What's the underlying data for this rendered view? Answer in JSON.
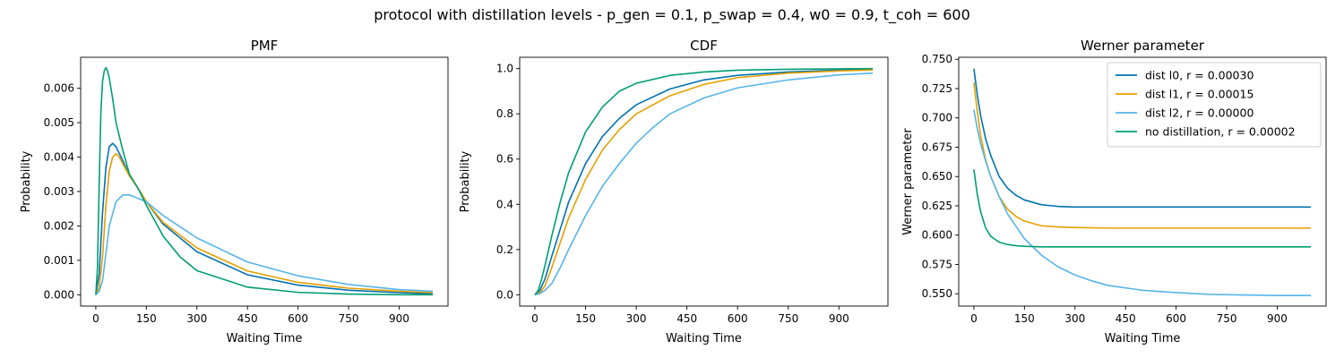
{
  "figure_title": "protocol with distillation levels - p_gen = 0.1, p_swap = 0.4, w0 = 0.9, t_coh = 600",
  "series_colors": {
    "dist_l0": "#0072b2",
    "dist_l1": "#e69f00",
    "dist_l2": "#56b4e9",
    "no_distillation": "#009e73"
  },
  "chart_data": [
    {
      "type": "line",
      "title": "PMF",
      "xlabel": "Waiting Time",
      "ylabel": "Probability",
      "xlim": [
        -45,
        1045
      ],
      "ylim": [
        -0.00033,
        0.0069
      ],
      "xticks": [
        0,
        150,
        300,
        450,
        600,
        750,
        900
      ],
      "xtick_labels": [
        "0",
        "150",
        "300",
        "450",
        "600",
        "750",
        "900"
      ],
      "yticks": [
        0,
        0.001,
        0.002,
        0.003,
        0.004,
        0.005,
        0.006
      ],
      "ytick_labels": [
        "0.000",
        "0.001",
        "0.002",
        "0.003",
        "0.004",
        "0.005",
        "0.006"
      ],
      "series": [
        {
          "key": "dist_l0",
          "color": "#0072b2",
          "x": [
            0,
            10,
            20,
            30,
            40,
            50,
            60,
            80,
            100,
            125,
            150,
            200,
            300,
            450,
            600,
            750,
            900,
            1000
          ],
          "y": [
            0,
            0.0006,
            0.0024,
            0.0037,
            0.0043,
            0.0044,
            0.0043,
            0.0039,
            0.00345,
            0.0031,
            0.0027,
            0.00205,
            0.00125,
            0.00058,
            0.00028,
            0.00013,
            6e-05,
            3e-05
          ]
        },
        {
          "key": "dist_l1",
          "color": "#e69f00",
          "x": [
            0,
            10,
            20,
            30,
            40,
            50,
            60,
            70,
            80,
            100,
            125,
            150,
            200,
            300,
            450,
            600,
            750,
            900,
            1000
          ],
          "y": [
            0,
            0.0002,
            0.0011,
            0.0026,
            0.0036,
            0.004,
            0.0041,
            0.004,
            0.0038,
            0.00345,
            0.0031,
            0.0027,
            0.0021,
            0.00136,
            0.00069,
            0.00036,
            0.00019,
            0.0001,
            6e-05
          ]
        },
        {
          "key": "dist_l2",
          "color": "#56b4e9",
          "x": [
            0,
            10,
            20,
            30,
            40,
            60,
            80,
            100,
            125,
            150,
            200,
            300,
            450,
            600,
            750,
            900,
            1000
          ],
          "y": [
            0,
            0.0001,
            0.0004,
            0.0012,
            0.002,
            0.0027,
            0.0029,
            0.0029,
            0.0028,
            0.0027,
            0.0023,
            0.00165,
            0.00095,
            0.00055,
            0.0003,
            0.00015,
            0.0001
          ]
        },
        {
          "key": "no_distillation",
          "color": "#009e73",
          "x": [
            0,
            5,
            10,
            15,
            20,
            25,
            30,
            35,
            40,
            50,
            60,
            80,
            100,
            125,
            150,
            200,
            250,
            300,
            450,
            600,
            750,
            900,
            1000
          ],
          "y": [
            0,
            0.0008,
            0.0032,
            0.0053,
            0.0062,
            0.0065,
            0.0066,
            0.0065,
            0.0063,
            0.0057,
            0.005,
            0.0042,
            0.0035,
            0.0031,
            0.0026,
            0.0017,
            0.0011,
            0.0007,
            0.00022,
            7e-05,
            2e-05,
            0,
            0
          ]
        }
      ]
    },
    {
      "type": "line",
      "title": "CDF",
      "xlabel": "Waiting Time",
      "ylabel": "Probability",
      "xlim": [
        -45,
        1045
      ],
      "ylim": [
        -0.05,
        1.05
      ],
      "xticks": [
        0,
        150,
        300,
        450,
        600,
        750,
        900
      ],
      "xtick_labels": [
        "0",
        "150",
        "300",
        "450",
        "600",
        "750",
        "900"
      ],
      "yticks": [
        0,
        0.2,
        0.4,
        0.6,
        0.8,
        1.0
      ],
      "ytick_labels": [
        "0.0",
        "0.2",
        "0.4",
        "0.6",
        "0.8",
        "1.0"
      ],
      "series": [
        {
          "key": "dist_l0",
          "color": "#0072b2",
          "x": [
            0,
            15,
            30,
            50,
            75,
            100,
            150,
            200,
            250,
            300,
            400,
            500,
            600,
            750,
            900,
            1000
          ],
          "y": [
            0,
            0.02,
            0.07,
            0.17,
            0.29,
            0.41,
            0.58,
            0.7,
            0.78,
            0.84,
            0.91,
            0.95,
            0.97,
            0.985,
            0.993,
            0.996
          ]
        },
        {
          "key": "dist_l1",
          "color": "#e69f00",
          "x": [
            0,
            15,
            30,
            50,
            75,
            100,
            150,
            200,
            250,
            300,
            400,
            500,
            600,
            750,
            900,
            1000
          ],
          "y": [
            0,
            0.01,
            0.04,
            0.12,
            0.23,
            0.34,
            0.51,
            0.64,
            0.73,
            0.8,
            0.88,
            0.93,
            0.96,
            0.98,
            0.99,
            0.994
          ]
        },
        {
          "key": "dist_l2",
          "color": "#56b4e9",
          "x": [
            0,
            15,
            30,
            50,
            75,
            100,
            150,
            200,
            250,
            300,
            350,
            400,
            500,
            600,
            750,
            900,
            1000
          ],
          "y": [
            0,
            0.005,
            0.02,
            0.05,
            0.12,
            0.2,
            0.35,
            0.48,
            0.58,
            0.67,
            0.74,
            0.8,
            0.87,
            0.915,
            0.95,
            0.972,
            0.98
          ]
        },
        {
          "key": "no_distillation",
          "color": "#009e73",
          "x": [
            0,
            10,
            20,
            30,
            50,
            75,
            100,
            150,
            200,
            250,
            300,
            400,
            500,
            600,
            750,
            900,
            1000
          ],
          "y": [
            0,
            0.02,
            0.07,
            0.13,
            0.26,
            0.41,
            0.54,
            0.72,
            0.83,
            0.9,
            0.935,
            0.97,
            0.985,
            0.993,
            0.997,
            0.999,
            1.0
          ]
        }
      ]
    },
    {
      "type": "line",
      "title": "Werner parameter",
      "xlabel": "Waiting Time",
      "ylabel": "Werner parameter",
      "xlim": [
        -45,
        1045
      ],
      "ylim": [
        0.5395,
        0.7517
      ],
      "xticks": [
        0,
        150,
        300,
        450,
        600,
        750,
        900
      ],
      "xtick_labels": [
        "0",
        "150",
        "300",
        "450",
        "600",
        "750",
        "900"
      ],
      "yticks": [
        0.55,
        0.575,
        0.6,
        0.625,
        0.65,
        0.675,
        0.7,
        0.725,
        0.75
      ],
      "ytick_labels": [
        "0.550",
        "0.575",
        "0.600",
        "0.625",
        "0.650",
        "0.675",
        "0.700",
        "0.725",
        "0.750"
      ],
      "legend_position": "top-right",
      "series": [
        {
          "key": "dist_l0",
          "name": "dist l0, r = 0.00030",
          "color": "#0072b2",
          "x": [
            0,
            10,
            20,
            35,
            50,
            75,
            100,
            125,
            150,
            200,
            250,
            300,
            400,
            500,
            700,
            1000
          ],
          "y": [
            0.742,
            0.72,
            0.702,
            0.682,
            0.668,
            0.65,
            0.64,
            0.634,
            0.63,
            0.626,
            0.6245,
            0.624,
            0.624,
            0.624,
            0.624,
            0.624
          ]
        },
        {
          "key": "dist_l1",
          "name": "dist l1, r = 0.00015",
          "color": "#e69f00",
          "x": [
            0,
            10,
            20,
            35,
            50,
            75,
            100,
            125,
            150,
            200,
            250,
            300,
            400,
            500,
            700,
            1000
          ],
          "y": [
            0.73,
            0.706,
            0.685,
            0.664,
            0.65,
            0.633,
            0.622,
            0.616,
            0.612,
            0.608,
            0.607,
            0.6065,
            0.606,
            0.606,
            0.606,
            0.606
          ]
        },
        {
          "key": "dist_l2",
          "name": "dist l2, r = 0.00000",
          "color": "#56b4e9",
          "x": [
            0,
            10,
            20,
            35,
            50,
            75,
            100,
            150,
            200,
            250,
            300,
            350,
            400,
            500,
            600,
            700,
            800,
            900,
            1000
          ],
          "y": [
            0.707,
            0.691,
            0.678,
            0.663,
            0.65,
            0.633,
            0.618,
            0.597,
            0.583,
            0.573,
            0.566,
            0.561,
            0.557,
            0.553,
            0.551,
            0.5495,
            0.549,
            0.5485,
            0.5485
          ]
        },
        {
          "key": "no_distillation",
          "name": "no distillation, r = 0.00002",
          "color": "#009e73",
          "x": [
            0,
            10,
            20,
            35,
            50,
            75,
            100,
            125,
            150,
            200,
            300,
            500,
            700,
            1000
          ],
          "y": [
            0.656,
            0.635,
            0.62,
            0.606,
            0.599,
            0.594,
            0.592,
            0.591,
            0.5905,
            0.59,
            0.59,
            0.59,
            0.59,
            0.59
          ]
        }
      ]
    }
  ]
}
